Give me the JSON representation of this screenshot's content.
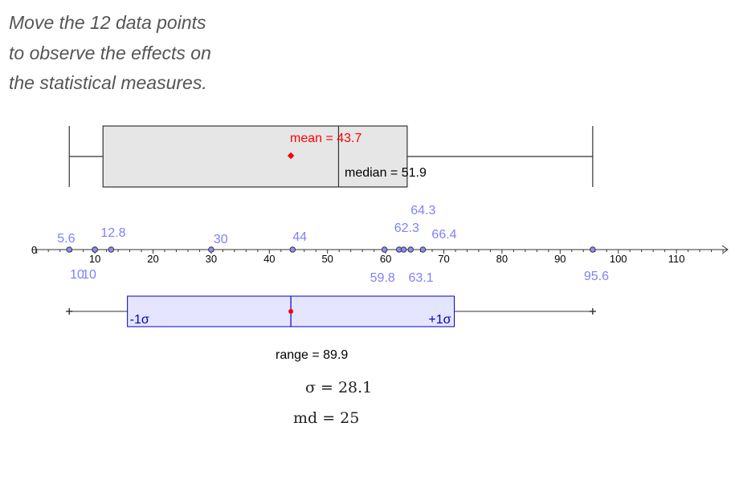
{
  "instructions": [
    "Move the 12 data points",
    "to observe the effects on",
    "the statistical measures."
  ],
  "data_points": [
    5.6,
    10,
    10,
    12.8,
    30,
    44,
    59.8,
    62.3,
    63.1,
    64.3,
    66.4,
    95.6
  ],
  "axis": {
    "ticks": [
      10,
      20,
      30,
      40,
      50,
      60,
      70,
      80,
      90,
      100,
      110
    ],
    "origin_label": "0"
  },
  "boxplot": {
    "min": 5.6,
    "q1": 11.4,
    "median": 51.9,
    "q3": 63.7,
    "max": 95.6
  },
  "mean_label": "mean = 43.7",
  "mean_value": 43.7,
  "median_label": "median = 51.9",
  "sigma_box": {
    "minus_label": "-1σ",
    "plus_label": "+1σ",
    "sigma": 28.1
  },
  "range_label": "range = 89.9",
  "sigma_formula": "σ = 28.1",
  "md_formula": "md = 25",
  "colors": {
    "point_label": "#7f7fff",
    "mean": "#ff0000",
    "sigma_fill": "#e5e5ff",
    "sigma_stroke": "#0000cc",
    "box_fill": "#e6e6e6",
    "text_gray": "#555555"
  }
}
